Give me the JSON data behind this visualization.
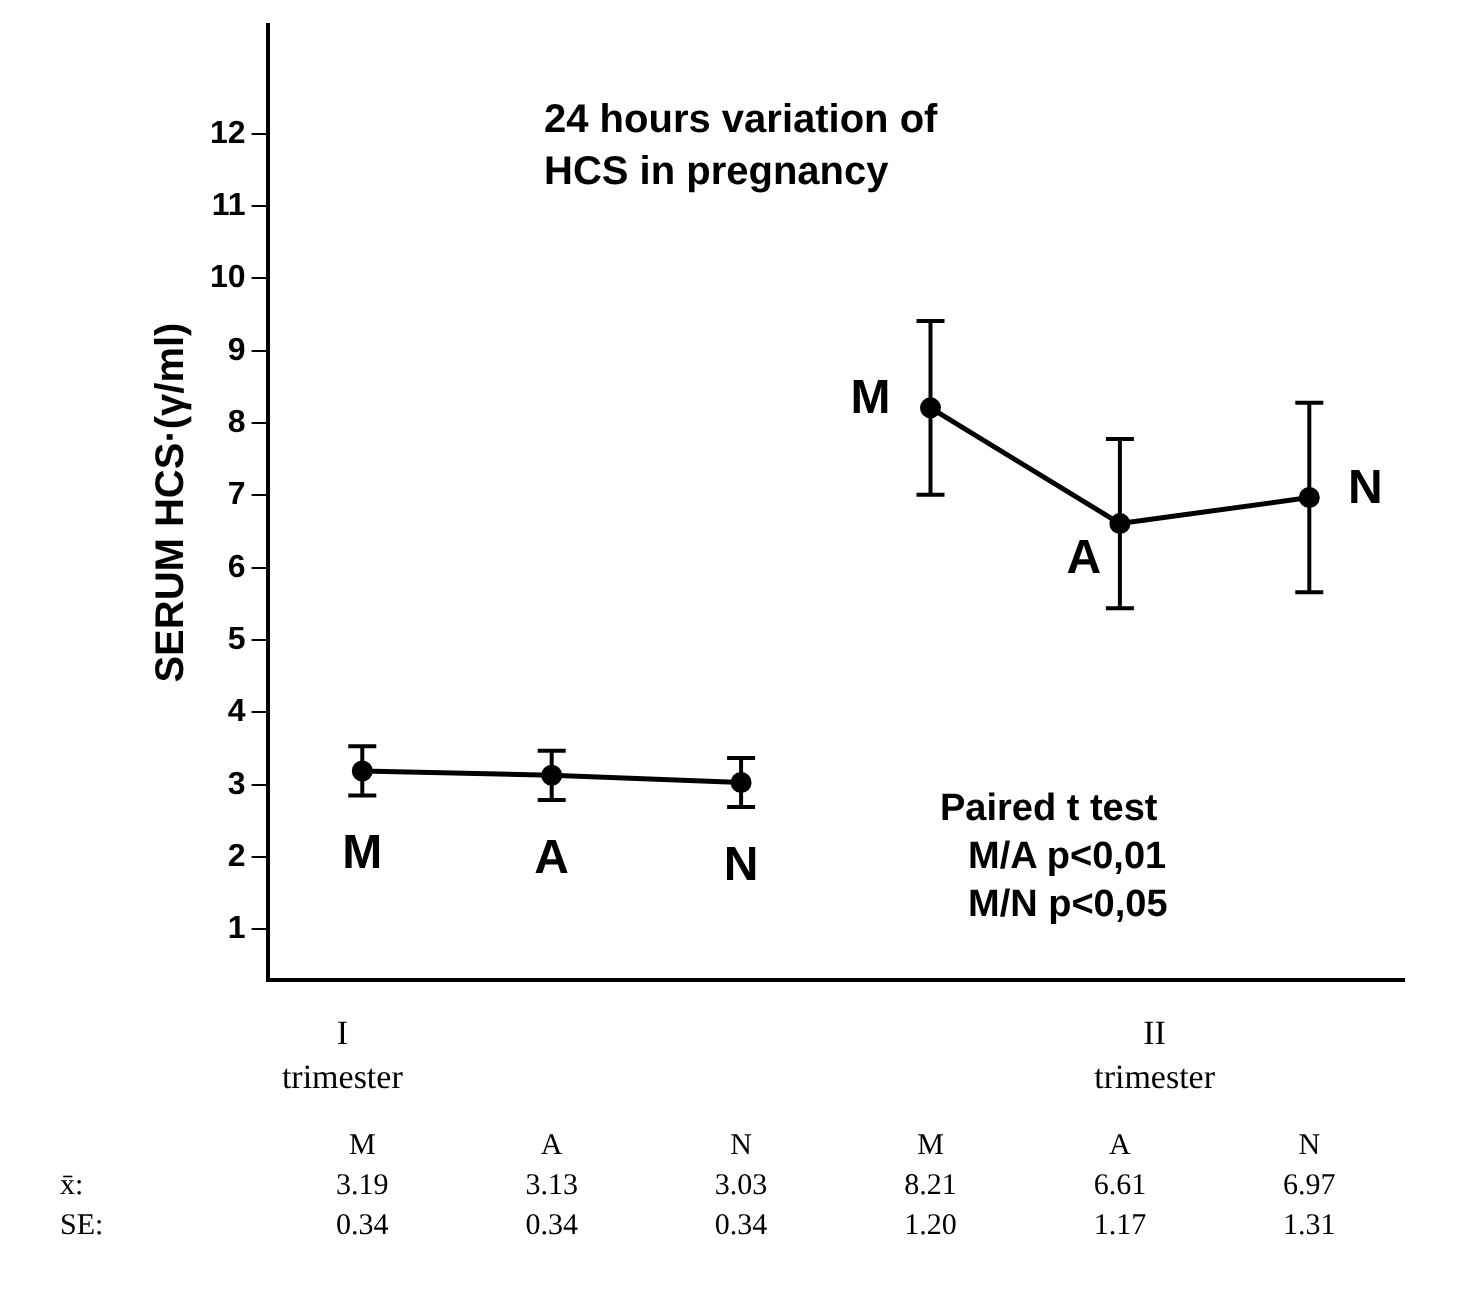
{
  "chart_data": {
    "type": "line",
    "title": "24 hours variation of HCS in pregnancy",
    "ylabel": "SERUM HCS·(γ/ml)",
    "categories": [
      "M",
      "A",
      "N",
      "M",
      "A",
      "N"
    ],
    "series": [
      {
        "color": "#000000",
        "values": [
          3.19,
          3.13,
          3.03,
          null,
          null,
          null
        ],
        "errors": [
          0.34,
          0.34,
          0.34,
          null,
          null,
          null
        ]
      },
      {
        "color": "#000000",
        "values": [
          null,
          null,
          null,
          8.21,
          6.61,
          6.97
        ],
        "errors": [
          null,
          null,
          null,
          1.2,
          1.17,
          1.31
        ]
      }
    ],
    "ylim": [
      0.3,
      13.5
    ],
    "yticks": [
      1,
      2,
      3,
      4,
      5,
      6,
      7,
      8,
      9,
      10,
      11,
      12
    ],
    "tick_labels": "y",
    "grid": false,
    "legend": false,
    "marker": "circle",
    "line_style": "solid",
    "annotations": [
      "I trimester",
      "II trimester",
      "Paired t test",
      "M/A p<0,01",
      "M/N p<0,05",
      "x̄:",
      "SE:",
      "3.19",
      "3.13",
      "3.03",
      "8.21",
      "6.61",
      "6.97",
      "0.34",
      "0.34",
      "0.34",
      "1.20",
      "1.17",
      "1.31"
    ]
  }
}
